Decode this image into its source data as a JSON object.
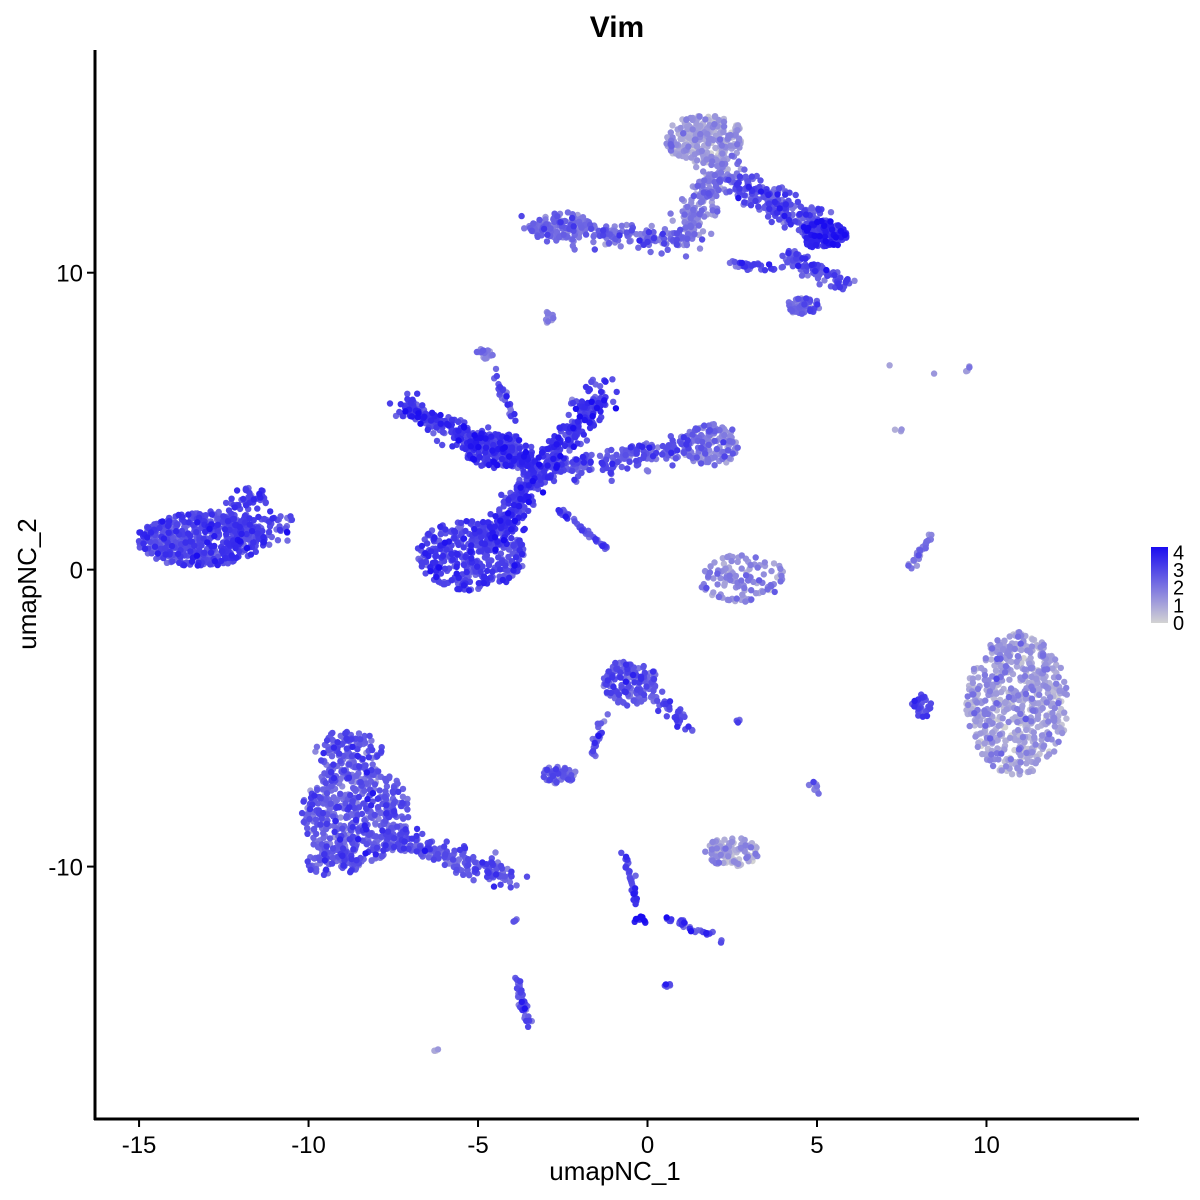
{
  "chart_data": {
    "type": "scatter",
    "title": "Vim",
    "xlabel": "umapNC_1",
    "ylabel": "umapNC_2",
    "xlim": [
      -16.3,
      14.5
    ],
    "ylim": [
      -18.5,
      17.5
    ],
    "xticks": [
      {
        "value": -15,
        "label": "-15"
      },
      {
        "value": -10,
        "label": "-10"
      },
      {
        "value": -5,
        "label": "-5"
      },
      {
        "value": 0,
        "label": "0"
      },
      {
        "value": 5,
        "label": "5"
      },
      {
        "value": 10,
        "label": "10"
      }
    ],
    "yticks": [
      {
        "value": 10,
        "label": "10"
      },
      {
        "value": 0,
        "label": "0"
      },
      {
        "value": -10,
        "label": "-10"
      }
    ],
    "colorscale": {
      "low": "#d3d3d3",
      "high": "#1a0cf0",
      "min": 0,
      "max": 4.3,
      "ticks": [
        {
          "value": 4,
          "label": "4"
        },
        {
          "value": 3,
          "label": "3"
        },
        {
          "value": 2,
          "label": "2"
        },
        {
          "value": 1,
          "label": "1"
        },
        {
          "value": 0,
          "label": "0"
        }
      ]
    },
    "legend_position": "right",
    "grid": false,
    "clusters": [
      {
        "shape": "ellipse",
        "cx": -13.2,
        "cy": 1.0,
        "rx": 1.9,
        "ry": 0.9,
        "n": 520,
        "expr": 2.9
      },
      {
        "shape": "segment",
        "x1": -12.6,
        "y1": 1.6,
        "x2": -10.7,
        "y2": 1.4,
        "spread": 0.5,
        "n": 80,
        "expr": 2.9
      },
      {
        "shape": "ellipse",
        "cx": -11.8,
        "cy": 2.4,
        "rx": 0.6,
        "ry": 0.4,
        "n": 40,
        "expr": 2.9
      },
      {
        "shape": "ellipse",
        "cx": -5.2,
        "cy": 0.5,
        "rx": 1.6,
        "ry": 1.2,
        "n": 380,
        "expr": 3.0
      },
      {
        "shape": "segment",
        "x1": -4.6,
        "y1": 0.8,
        "x2": -3.3,
        "y2": 3.2,
        "spread": 0.45,
        "n": 220,
        "expr": 3.1
      },
      {
        "shape": "segment",
        "x1": -7.3,
        "y1": 5.6,
        "x2": -3.2,
        "y2": 3.3,
        "spread": 0.4,
        "n": 280,
        "expr": 3.2
      },
      {
        "shape": "ellipse",
        "cx": -4.4,
        "cy": 4.0,
        "rx": 1.0,
        "ry": 0.6,
        "n": 140,
        "expr": 3.3
      },
      {
        "shape": "segment",
        "x1": -1.3,
        "y1": 6.0,
        "x2": -3.2,
        "y2": 3.3,
        "spread": 0.45,
        "n": 220,
        "expr": 3.2
      },
      {
        "shape": "segment",
        "x1": -3.2,
        "y1": 3.3,
        "x2": 1.5,
        "y2": 4.2,
        "spread": 0.45,
        "n": 200,
        "expr": 2.6
      },
      {
        "shape": "ellipse",
        "cx": 1.9,
        "cy": 4.2,
        "rx": 0.9,
        "ry": 0.7,
        "n": 140,
        "expr": 1.7
      },
      {
        "shape": "segment",
        "x1": -2.6,
        "y1": 2.0,
        "x2": -1.2,
        "y2": 0.7,
        "spread": 0.08,
        "n": 45,
        "expr": 2.8
      },
      {
        "shape": "segment",
        "x1": -4.6,
        "y1": 6.8,
        "x2": -3.9,
        "y2": 5.0,
        "spread": 0.1,
        "n": 25,
        "expr": 2.6
      },
      {
        "shape": "ellipse",
        "cx": -4.8,
        "cy": 7.3,
        "rx": 0.25,
        "ry": 0.2,
        "n": 20,
        "expr": 1.6
      },
      {
        "shape": "ellipse",
        "cx": 1.7,
        "cy": 14.5,
        "rx": 1.2,
        "ry": 0.8,
        "n": 260,
        "expr": 1.0
      },
      {
        "shape": "segment",
        "x1": 1.2,
        "y1": 11.5,
        "x2": 2.2,
        "y2": 13.6,
        "spread": 0.5,
        "n": 160,
        "expr": 1.8
      },
      {
        "shape": "segment",
        "x1": 2.6,
        "y1": 13.0,
        "x2": 5.3,
        "y2": 11.4,
        "spread": 0.5,
        "n": 220,
        "expr": 2.7
      },
      {
        "shape": "ellipse",
        "cx": 5.2,
        "cy": 11.3,
        "rx": 0.7,
        "ry": 0.5,
        "n": 120,
        "expr": 3.6
      },
      {
        "shape": "segment",
        "x1": 4.0,
        "y1": 10.6,
        "x2": 6.0,
        "y2": 9.5,
        "spread": 0.3,
        "n": 90,
        "expr": 2.8
      },
      {
        "shape": "ellipse",
        "cx": 4.6,
        "cy": 8.9,
        "rx": 0.5,
        "ry": 0.3,
        "n": 45,
        "expr": 2.4
      },
      {
        "shape": "segment",
        "x1": -3.5,
        "y1": 11.5,
        "x2": 1.4,
        "y2": 11.1,
        "spread": 0.4,
        "n": 200,
        "expr": 2.2
      },
      {
        "shape": "ellipse",
        "cx": -2.6,
        "cy": 11.6,
        "rx": 0.9,
        "ry": 0.45,
        "n": 80,
        "expr": 2.0
      },
      {
        "shape": "segment",
        "x1": 2.3,
        "y1": 10.3,
        "x2": 4.2,
        "y2": 10.1,
        "spread": 0.15,
        "n": 30,
        "expr": 3.0
      },
      {
        "shape": "ellipse",
        "cx": -2.9,
        "cy": 8.5,
        "rx": 0.2,
        "ry": 0.2,
        "n": 10,
        "expr": 1.8
      },
      {
        "shape": "ellipse",
        "cx": -8.6,
        "cy": -8.2,
        "rx": 1.6,
        "ry": 1.7,
        "n": 520,
        "expr": 2.5
      },
      {
        "shape": "ellipse",
        "cx": -8.8,
        "cy": -6.1,
        "rx": 1.0,
        "ry": 0.7,
        "n": 110,
        "expr": 2.5
      },
      {
        "shape": "ellipse",
        "cx": -9.3,
        "cy": -9.9,
        "rx": 0.8,
        "ry": 0.4,
        "n": 70,
        "expr": 2.6
      },
      {
        "shape": "segment",
        "x1": -7.5,
        "y1": -9.0,
        "x2": -4.0,
        "y2": -10.4,
        "spread": 0.4,
        "n": 180,
        "expr": 2.6
      },
      {
        "shape": "segment",
        "x1": -3.9,
        "y1": -13.7,
        "x2": -3.5,
        "y2": -15.4,
        "spread": 0.12,
        "n": 40,
        "expr": 2.6
      },
      {
        "shape": "ellipse",
        "cx": -3.9,
        "cy": -11.8,
        "rx": 0.1,
        "ry": 0.1,
        "n": 4,
        "expr": 2.6
      },
      {
        "shape": "ellipse",
        "cx": -0.5,
        "cy": -3.8,
        "rx": 0.8,
        "ry": 0.8,
        "n": 150,
        "expr": 2.7
      },
      {
        "shape": "segment",
        "x1": 0.3,
        "y1": -4.2,
        "x2": 1.2,
        "y2": -5.4,
        "spread": 0.25,
        "n": 40,
        "expr": 2.7
      },
      {
        "shape": "segment",
        "x1": -1.3,
        "y1": -4.8,
        "x2": -1.6,
        "y2": -6.3,
        "spread": 0.12,
        "n": 25,
        "expr": 2.7
      },
      {
        "shape": "ellipse",
        "cx": -2.6,
        "cy": -6.9,
        "rx": 0.5,
        "ry": 0.3,
        "n": 50,
        "expr": 2.4
      },
      {
        "shape": "segment",
        "x1": -0.7,
        "y1": -9.5,
        "x2": -0.3,
        "y2": -11.3,
        "spread": 0.1,
        "n": 30,
        "expr": 3.2
      },
      {
        "shape": "segment",
        "x1": 0.5,
        "y1": -11.7,
        "x2": 2.4,
        "y2": -12.5,
        "spread": 0.15,
        "n": 30,
        "expr": 3.0
      },
      {
        "shape": "ellipse",
        "cx": -0.2,
        "cy": -11.8,
        "rx": 0.2,
        "ry": 0.15,
        "n": 12,
        "expr": 3.6
      },
      {
        "shape": "ellipse",
        "cx": 2.5,
        "cy": -9.5,
        "rx": 0.8,
        "ry": 0.5,
        "n": 110,
        "expr": 1.0
      },
      {
        "shape": "segment",
        "x1": 4.9,
        "y1": -7.2,
        "x2": 5.1,
        "y2": -7.5,
        "spread": 0.1,
        "n": 10,
        "expr": 1.6
      },
      {
        "shape": "ellipse",
        "cx": 0.6,
        "cy": -14.0,
        "rx": 0.1,
        "ry": 0.1,
        "n": 5,
        "expr": 2.8
      },
      {
        "shape": "ellipse",
        "cx": 2.7,
        "cy": -5.1,
        "rx": 0.1,
        "ry": 0.05,
        "n": 4,
        "expr": 2.6
      },
      {
        "shape": "ellipse",
        "cx": -6.2,
        "cy": -16.2,
        "rx": 0.1,
        "ry": 0.05,
        "n": 3,
        "expr": 0.9
      },
      {
        "shape": "ellipse",
        "cx": 2.8,
        "cy": -0.3,
        "rx": 1.3,
        "ry": 0.8,
        "n": 120,
        "expr": 1.5
      },
      {
        "shape": "segment",
        "x1": 7.8,
        "y1": 0.1,
        "x2": 8.4,
        "y2": 1.2,
        "spread": 0.12,
        "n": 28,
        "expr": 1.8
      },
      {
        "shape": "ellipse",
        "cx": 10.9,
        "cy": -4.5,
        "rx": 1.5,
        "ry": 2.4,
        "n": 620,
        "expr": 1.1
      },
      {
        "shape": "ellipse",
        "cx": 8.1,
        "cy": -4.6,
        "rx": 0.3,
        "ry": 0.4,
        "n": 30,
        "expr": 3.0
      },
      {
        "shape": "ellipse",
        "cx": 9.5,
        "cy": 6.7,
        "rx": 0.15,
        "ry": 0.15,
        "n": 4,
        "expr": 1.2
      },
      {
        "shape": "ellipse",
        "cx": 7.4,
        "cy": 4.7,
        "rx": 0.1,
        "ry": 0.2,
        "n": 3,
        "expr": 1.2
      },
      {
        "shape": "ellipse",
        "cx": 7.1,
        "cy": 6.9,
        "rx": 0.05,
        "ry": 0.05,
        "n": 1,
        "expr": 1.2
      },
      {
        "shape": "ellipse",
        "cx": 8.5,
        "cy": 6.6,
        "rx": 0.05,
        "ry": 0.05,
        "n": 1,
        "expr": 1.2
      }
    ]
  }
}
